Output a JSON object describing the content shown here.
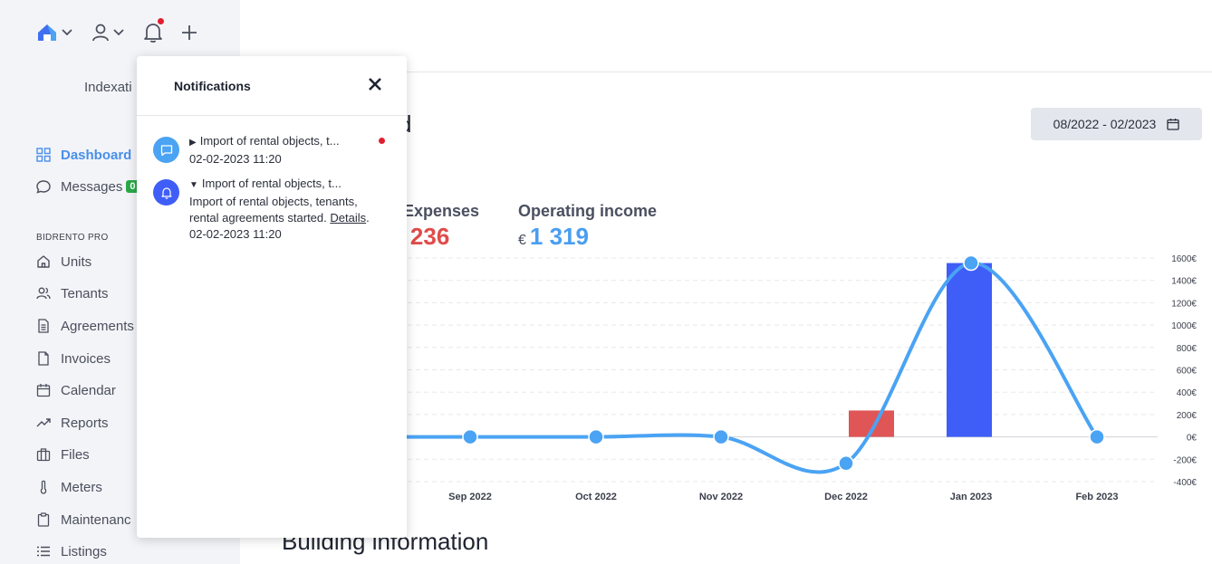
{
  "sidebar": {
    "indexation_label": "Indexati",
    "section_label": "BIDRENTO PRO",
    "items": [
      {
        "label": "Dashboard",
        "icon": "grid-icon"
      },
      {
        "label": "Messages",
        "icon": "chat-icon",
        "badge": "0"
      },
      {
        "label": "Units",
        "icon": "home-icon"
      },
      {
        "label": "Tenants",
        "icon": "users-icon"
      },
      {
        "label": "Agreements",
        "icon": "document-icon"
      },
      {
        "label": "Invoices",
        "icon": "file-icon"
      },
      {
        "label": "Calendar",
        "icon": "calendar-icon"
      },
      {
        "label": "Reports",
        "icon": "trend-icon"
      },
      {
        "label": "Files",
        "icon": "briefcase-icon"
      },
      {
        "label": "Meters",
        "icon": "thermometer-icon"
      },
      {
        "label": "Maintenanc",
        "icon": "clipboard-icon"
      },
      {
        "label": "Listings",
        "icon": "list-icon"
      }
    ]
  },
  "main": {
    "title_fragment": "d",
    "date_range": "08/2022 - 02/2023",
    "kpis": [
      {
        "label": "Expenses",
        "currency": "€",
        "value": "236",
        "color": "#e04b4b"
      },
      {
        "label": "Operating income",
        "currency": "€",
        "value": "1 319",
        "color": "#4a9ef0"
      }
    ],
    "building_title": "Building information"
  },
  "notifications": {
    "title": "Notifications",
    "items": [
      {
        "summary": "Import of rental objects, t...",
        "time": "02-02-2023 11:20",
        "unread": true,
        "icon": "chat-bubble-icon"
      },
      {
        "summary": "Import of rental objects, t...",
        "detail": "Import of rental objects, tenants, rental agreements started.",
        "link": "Details",
        "time": "02-02-2023 11:20",
        "icon": "bell-icon"
      }
    ]
  },
  "chart_data": {
    "type": "bar",
    "categories": [
      "Sep 2022",
      "Oct 2022",
      "Nov 2022",
      "Dec 2022",
      "Jan 2023",
      "Feb 2023"
    ],
    "y_ticks": [
      "1600€",
      "1400€",
      "1200€",
      "1000€",
      "800€",
      "600€",
      "400€",
      "200€",
      "0€",
      "-200€",
      "-400€"
    ],
    "ylim": [
      -400,
      1600
    ],
    "series": [
      {
        "type": "bar",
        "color": "#e05555",
        "values": [
          0,
          0,
          0,
          236,
          0,
          0
        ]
      },
      {
        "type": "bar",
        "color": "#3f5ef7",
        "values": [
          0,
          0,
          0,
          0,
          1555,
          0
        ]
      },
      {
        "type": "line",
        "color": "#4aa3f3",
        "values": [
          0,
          0,
          0,
          -236,
          1555,
          0
        ]
      }
    ],
    "grid": true,
    "legend": "none"
  }
}
